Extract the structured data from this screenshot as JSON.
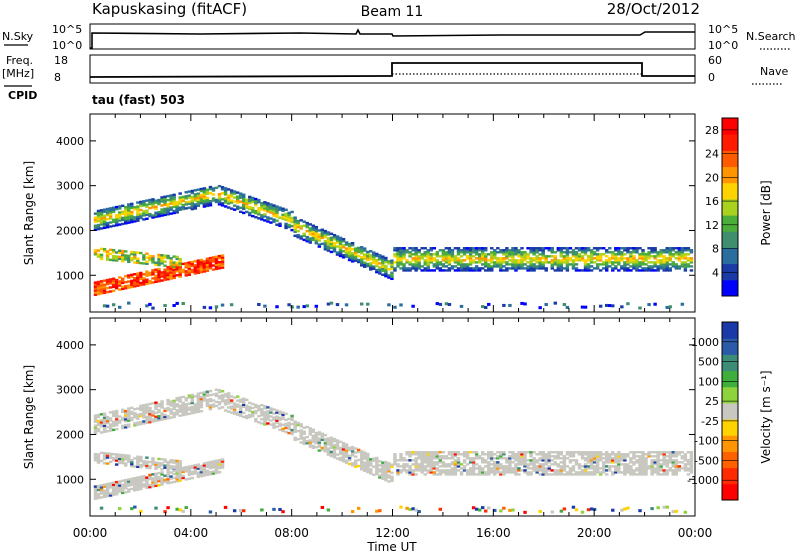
{
  "header": {
    "station": "Kapuskasing (fitACF)",
    "beam": "Beam 11",
    "date": "28/Oct/2012"
  },
  "top_panels": {
    "nsky_label": "N.Sky",
    "nsky_ticks": [
      "10^5",
      "10^0"
    ],
    "nsearch_ticks": [
      "10^5",
      "10^0"
    ],
    "nsearch_label": "N.Search",
    "freq_label": "Freq.",
    "freq_unit": "[MHz]",
    "freq_ticks": [
      "18",
      "8"
    ],
    "nave_ticks": [
      "60",
      "0"
    ],
    "nave_label": "Nave",
    "cpid_label": "CPID",
    "cpid_text": "tau (fast) 503"
  },
  "colors": {
    "power_scale": [
      "#0000ff",
      "#1a3aa8",
      "#2a6e9e",
      "#3f8f6e",
      "#4cae3a",
      "#a8d21e",
      "#ffd300",
      "#ff9500",
      "#ff5a00",
      "#ff1a00",
      "#ff0000"
    ],
    "velocity_scale": [
      "#1a3aa8",
      "#2a5aa8",
      "#3c8c78",
      "#3fae3c",
      "#8ed23c",
      "#c8c8c0",
      "#ffd300",
      "#ff9500",
      "#ff6000",
      "#ff2a00",
      "#ff0000"
    ],
    "ground_scatter": "#c8c8c0"
  },
  "chart_data": [
    {
      "type": "heatmap",
      "title": "",
      "ylabel": "Slant Range [km]",
      "xlabel": "",
      "x_ticks": [
        "00:00",
        "04:00",
        "08:00",
        "12:00",
        "16:00",
        "20:00",
        "00:00"
      ],
      "xlim_hours": [
        0,
        24
      ],
      "ylim_km": [
        180,
        4600
      ],
      "y_ticks": [
        1000,
        2000,
        3000,
        4000
      ],
      "colorbar_label": "Power [dB]",
      "colorbar_ticks": [
        4,
        8,
        12,
        16,
        20,
        24,
        28
      ],
      "colorbar_range": [
        0,
        30
      ]
    },
    {
      "type": "heatmap",
      "title": "",
      "ylabel": "Slant Range [km]",
      "xlabel": "Time UT",
      "x_ticks": [
        "00:00",
        "04:00",
        "08:00",
        "12:00",
        "16:00",
        "20:00",
        "00:00"
      ],
      "xlim_hours": [
        0,
        24
      ],
      "ylim_km": [
        180,
        4600
      ],
      "y_ticks": [
        1000,
        2000,
        3000,
        4000
      ],
      "colorbar_label": "Velocity [m s⁻¹]",
      "colorbar_ticks": [
        "1000",
        "500",
        "100",
        "25",
        "-25",
        "-100",
        "-500",
        "-1000"
      ]
    }
  ]
}
